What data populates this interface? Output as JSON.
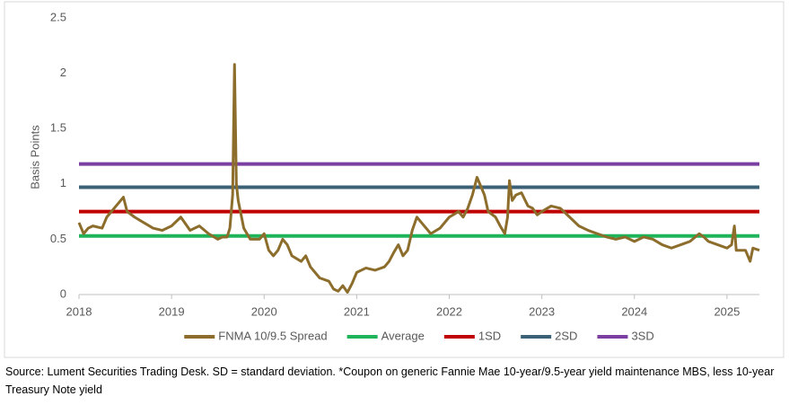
{
  "chart_data": {
    "type": "line",
    "y_label": "Basis Points",
    "xlim": [
      2018,
      2025.35
    ],
    "xticks": [
      2018,
      2019,
      2020,
      2021,
      2022,
      2023,
      2024,
      2025
    ],
    "ylim": [
      0,
      2.5
    ],
    "yticks": [
      0,
      0.5,
      1,
      1.5,
      2,
      2.5
    ],
    "grid": false,
    "legend": "bottom",
    "series": [
      {
        "name": "FNMA 10/9.5 Spread",
        "color": "#8c6d2c",
        "x": [
          2018.0,
          2018.05,
          2018.1,
          2018.15,
          2018.25,
          2018.3,
          2018.35,
          2018.4,
          2018.45,
          2018.48,
          2018.52,
          2018.6,
          2018.7,
          2018.8,
          2018.9,
          2019.0,
          2019.1,
          2019.2,
          2019.3,
          2019.4,
          2019.5,
          2019.55,
          2019.6,
          2019.63,
          2019.66,
          2019.68,
          2019.7,
          2019.72,
          2019.78,
          2019.85,
          2019.95,
          2020.0,
          2020.05,
          2020.1,
          2020.15,
          2020.2,
          2020.25,
          2020.3,
          2020.4,
          2020.45,
          2020.5,
          2020.6,
          2020.7,
          2020.75,
          2020.8,
          2020.85,
          2020.9,
          2020.95,
          2021.0,
          2021.1,
          2021.2,
          2021.3,
          2021.35,
          2021.4,
          2021.45,
          2021.5,
          2021.55,
          2021.6,
          2021.65,
          2021.7,
          2021.75,
          2021.8,
          2021.9,
          2022.0,
          2022.1,
          2022.15,
          2022.2,
          2022.25,
          2022.3,
          2022.33,
          2022.38,
          2022.42,
          2022.5,
          2022.55,
          2022.6,
          2022.63,
          2022.65,
          2022.68,
          2022.72,
          2022.78,
          2022.85,
          2022.9,
          2022.95,
          2023.0,
          2023.1,
          2023.2,
          2023.3,
          2023.4,
          2023.5,
          2023.6,
          2023.7,
          2023.8,
          2023.9,
          2024.0,
          2024.1,
          2024.2,
          2024.3,
          2024.4,
          2024.5,
          2024.6,
          2024.7,
          2024.75,
          2024.8,
          2024.9,
          2025.0,
          2025.05,
          2025.08,
          2025.1,
          2025.2,
          2025.25,
          2025.28,
          2025.35
        ],
        "values": [
          0.65,
          0.55,
          0.6,
          0.62,
          0.6,
          0.7,
          0.75,
          0.8,
          0.85,
          0.88,
          0.75,
          0.7,
          0.65,
          0.6,
          0.58,
          0.62,
          0.7,
          0.58,
          0.62,
          0.55,
          0.5,
          0.52,
          0.52,
          0.6,
          0.9,
          2.08,
          1.0,
          0.85,
          0.6,
          0.5,
          0.5,
          0.55,
          0.4,
          0.35,
          0.4,
          0.5,
          0.45,
          0.35,
          0.3,
          0.35,
          0.25,
          0.15,
          0.12,
          0.05,
          0.03,
          0.08,
          0.02,
          0.1,
          0.2,
          0.24,
          0.22,
          0.25,
          0.3,
          0.38,
          0.45,
          0.35,
          0.4,
          0.58,
          0.7,
          0.65,
          0.6,
          0.55,
          0.6,
          0.7,
          0.75,
          0.7,
          0.78,
          0.9,
          1.06,
          1.0,
          0.9,
          0.75,
          0.7,
          0.62,
          0.55,
          0.7,
          1.03,
          0.85,
          0.9,
          0.92,
          0.8,
          0.78,
          0.72,
          0.75,
          0.8,
          0.78,
          0.7,
          0.62,
          0.58,
          0.55,
          0.52,
          0.5,
          0.52,
          0.48,
          0.52,
          0.5,
          0.45,
          0.42,
          0.45,
          0.48,
          0.55,
          0.52,
          0.48,
          0.45,
          0.42,
          0.45,
          0.62,
          0.4,
          0.4,
          0.3,
          0.42,
          0.4
        ]
      },
      {
        "name": "Average",
        "color": "#1fb45a",
        "x": [
          2018,
          2025.35
        ],
        "values": [
          0.53,
          0.53
        ]
      },
      {
        "name": "1SD",
        "color": "#c00000",
        "x": [
          2018,
          2025.35
        ],
        "values": [
          0.75,
          0.75
        ]
      },
      {
        "name": "2SD",
        "color": "#3b6177",
        "x": [
          2018,
          2025.35
        ],
        "values": [
          0.97,
          0.97
        ]
      },
      {
        "name": "3SD",
        "color": "#7a3fa0",
        "x": [
          2018,
          2025.35
        ],
        "values": [
          1.18,
          1.18
        ]
      }
    ],
    "note": "Source: Lument Securities Trading Desk. SD = standard deviation. *Coupon on generic Fannie Mae 10-year/9.5-year yield maintenance MBS, less 10-year Treasury Note yield"
  }
}
